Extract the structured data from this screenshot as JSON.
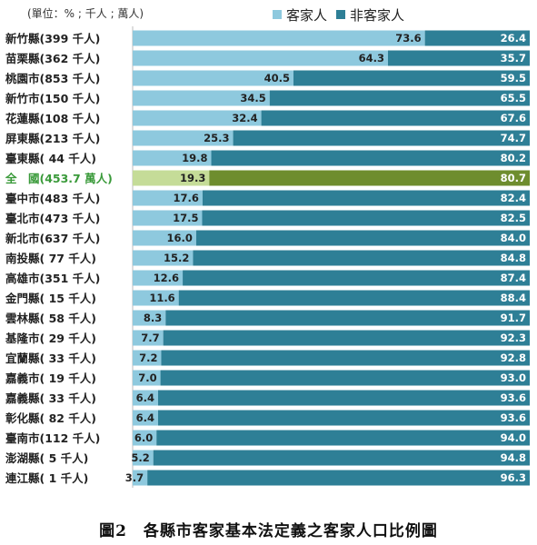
{
  "unit_note": "(單位：% ; 千人 ; 萬人)",
  "caption": "圖2　各縣市客家基本法定義之客家人口比例圖",
  "colors": {
    "hakka": "#8ec9de",
    "non_hakka": "#2e7f96",
    "hakka_highlight": "#c5dc98",
    "non_hakka_highlight": "#6e8d2e",
    "highlight_label": "#3a9a3a"
  },
  "chart_data": {
    "type": "bar",
    "orientation": "horizontal",
    "stacked": true,
    "xlim": [
      0,
      100
    ],
    "legend_position": "top-right",
    "categories": [
      "新竹縣(399 千人)",
      "苗栗縣(362 千人)",
      "桃園市(853 千人)",
      "新竹市(150 千人)",
      "花蓮縣(108 千人)",
      "屏東縣(213 千人)",
      "臺東縣( 44 千人)",
      "全　國(453.7 萬人)",
      "臺中市(483 千人)",
      "臺北市(473 千人)",
      "新北市(637 千人)",
      "南投縣( 77 千人)",
      "高雄市(351 千人)",
      "金門縣( 15 千人)",
      "雲林縣( 58 千人)",
      "基隆市( 29 千人)",
      "宜蘭縣( 33 千人)",
      "嘉義市( 19 千人)",
      "嘉義縣( 33 千人)",
      "彰化縣( 82 千人)",
      "臺南市(112 千人)",
      "澎湖縣(  5 千人)",
      "連江縣(  1 千人)"
    ],
    "highlight_category": "全　國(453.7 萬人)",
    "series": [
      {
        "name": "客家人",
        "values": [
          73.6,
          64.3,
          40.5,
          34.5,
          32.4,
          25.3,
          19.8,
          19.3,
          17.6,
          17.5,
          16.0,
          15.2,
          12.6,
          11.6,
          8.3,
          7.7,
          7.2,
          7.0,
          6.4,
          6.4,
          6.0,
          5.2,
          3.7
        ],
        "labels": [
          "73.6",
          "64.3",
          "40.5",
          "34.5",
          "32.4",
          "25.3",
          "19.8",
          "19.3",
          "17.6",
          "17.5",
          "16.0",
          "15.2",
          "12.6",
          "11.6",
          "8.3",
          "7.7",
          "7.2",
          "7.0",
          "6.4",
          "6.4",
          "6.0",
          "5.2",
          "3.7"
        ]
      },
      {
        "name": "非客家人",
        "values": [
          26.4,
          35.7,
          59.5,
          65.5,
          67.6,
          74.7,
          80.2,
          80.7,
          82.4,
          82.5,
          84.0,
          84.8,
          87.4,
          88.4,
          91.7,
          92.3,
          92.8,
          93.0,
          93.6,
          93.6,
          94.0,
          94.8,
          96.3
        ],
        "labels": [
          "26.4",
          "35.7",
          "59.5",
          "65.5",
          "67.6",
          "74.7",
          "80.2",
          "80.7",
          "82.4",
          "82.5",
          "84.0",
          "84.8",
          "87.4",
          "88.4",
          "91.7",
          "92.3",
          "92.8",
          "93.0",
          "93.6",
          "93.6",
          "94.0",
          "94.8",
          "96.3"
        ]
      }
    ]
  }
}
